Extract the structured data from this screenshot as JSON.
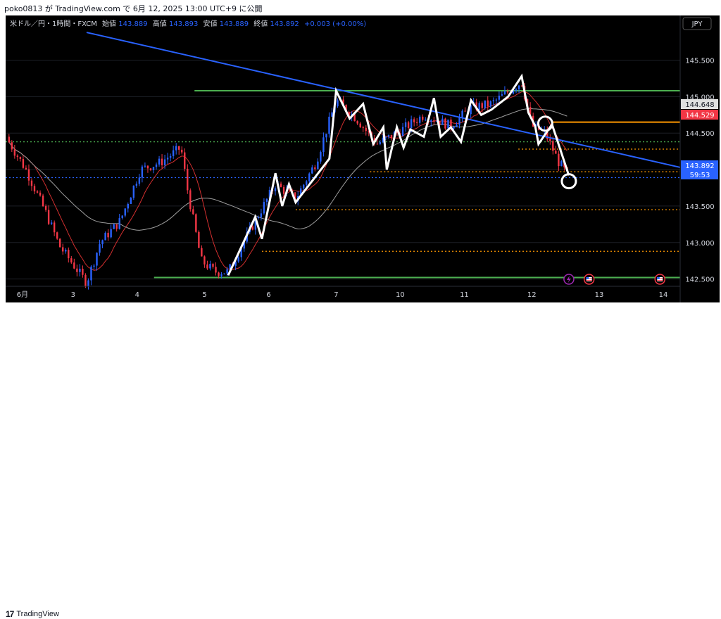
{
  "header": {
    "caption": "poko0813 が TradingView.com で 6月 12, 2025 13:00 UTC+9 に公開"
  },
  "legend": {
    "symbol": "米ドル／円・1時間・FXCM",
    "open_label": "始値",
    "open_value": "143.889",
    "high_label": "高値",
    "high_value": "143.893",
    "low_label": "安値",
    "low_value": "143.889",
    "close_label": "終値",
    "close_value": "143.892",
    "change": "+0.003 (+0.00%)"
  },
  "currency_label": "JPY",
  "footer": {
    "brand_logo": "17",
    "brand_name": "TradingView"
  },
  "colors": {
    "up": "#2962ff",
    "down": "#f23645",
    "trendline": "#2962ff",
    "support_green": "#4caf50",
    "orange": "#ff9800",
    "red_ma": "#d32f2f",
    "gray_ma": "#9e9e9e",
    "zigzag": "#ffffff",
    "background": "#000000"
  },
  "chart_data": {
    "type": "candlestick",
    "instrument": "USD/JPY",
    "timeframe": "1h",
    "x_labels": [
      "6月",
      "3",
      "4",
      "5",
      "6",
      "7",
      "10",
      "11",
      "12",
      "13",
      "14"
    ],
    "y_ticks": [
      "145.500",
      "145.000",
      "144.500",
      "144.000",
      "143.500",
      "143.000",
      "142.500"
    ],
    "ylim": [
      142.4,
      145.9
    ],
    "price_tags": [
      {
        "label": "144.648",
        "value": 144.648,
        "color": "#e0e0e0"
      },
      {
        "label": "144.529",
        "value": 144.529,
        "color": "#f23645"
      },
      {
        "label": "143.892",
        "value": 143.892,
        "color": "#2962ff"
      },
      {
        "label": "59:53",
        "value": 143.79,
        "color": "#2962ff"
      }
    ],
    "horizontal_lines": [
      {
        "value": 145.08,
        "style": "solid",
        "color": "#4caf50",
        "from": 0.28
      },
      {
        "value": 142.52,
        "style": "solid",
        "color": "#4caf50",
        "from": 0.22
      },
      {
        "value": 144.65,
        "style": "solid",
        "color": "#ff9800",
        "from": 0.81
      },
      {
        "value": 144.38,
        "style": "dotted",
        "color": "#4caf50",
        "from": 0.0
      },
      {
        "value": 144.28,
        "style": "dotted",
        "color": "#ff9800",
        "from": 0.76
      },
      {
        "value": 143.97,
        "style": "dotted",
        "color": "#ff9800",
        "from": 0.54
      },
      {
        "value": 143.89,
        "style": "dotted",
        "color": "#2962ff",
        "from": 0.0
      },
      {
        "value": 143.45,
        "style": "dotted",
        "color": "#ff9800",
        "from": 0.43
      },
      {
        "value": 142.88,
        "style": "dotted",
        "color": "#ff9800",
        "from": 0.38
      }
    ],
    "trendline": [
      {
        "x": 0.12,
        "y": 145.88
      },
      {
        "x": 1.0,
        "y": 144.03
      }
    ],
    "zigzag": [
      [
        0.33,
        142.55
      ],
      [
        0.37,
        143.35
      ],
      [
        0.38,
        143.05
      ],
      [
        0.4,
        143.95
      ],
      [
        0.41,
        143.5
      ],
      [
        0.42,
        143.8
      ],
      [
        0.43,
        143.55
      ],
      [
        0.48,
        144.15
      ],
      [
        0.49,
        145.08
      ],
      [
        0.51,
        144.7
      ],
      [
        0.53,
        144.9
      ],
      [
        0.545,
        144.35
      ],
      [
        0.56,
        144.58
      ],
      [
        0.565,
        144.0
      ],
      [
        0.58,
        144.58
      ],
      [
        0.59,
        144.3
      ],
      [
        0.6,
        144.55
      ],
      [
        0.62,
        144.45
      ],
      [
        0.635,
        144.98
      ],
      [
        0.645,
        144.45
      ],
      [
        0.66,
        144.58
      ],
      [
        0.675,
        144.38
      ],
      [
        0.69,
        144.95
      ],
      [
        0.705,
        144.75
      ],
      [
        0.72,
        144.82
      ],
      [
        0.745,
        145.0
      ],
      [
        0.765,
        145.28
      ],
      [
        0.775,
        144.78
      ],
      [
        0.785,
        144.6
      ],
      [
        0.79,
        144.35
      ],
      [
        0.81,
        144.62
      ],
      [
        0.835,
        143.92
      ]
    ],
    "circles": [
      {
        "x": 0.8,
        "y": 144.63
      },
      {
        "x": 0.835,
        "y": 143.84
      }
    ],
    "event_markers": [
      {
        "x": 0.835,
        "kind": "lightning",
        "color": "#9c27b0"
      },
      {
        "x": 0.865,
        "kind": "flag",
        "color": "#f23645"
      },
      {
        "x": 0.97,
        "kind": "flag",
        "color": "#f23645"
      }
    ]
  }
}
